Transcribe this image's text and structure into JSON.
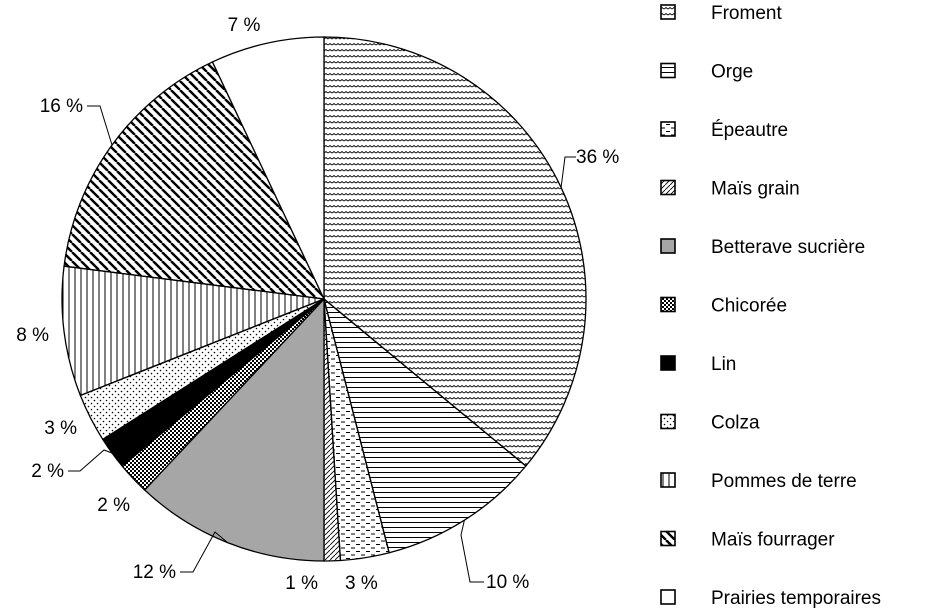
{
  "chart_data": {
    "type": "pie",
    "start_angle_deg": 0,
    "direction": "clockwise",
    "legend_position": "right",
    "slices": [
      {
        "name": "Froment",
        "value": 36,
        "label": "36 %",
        "pattern": "wave"
      },
      {
        "name": "Orge",
        "value": 10,
        "label": "10 %",
        "pattern": "hlines"
      },
      {
        "name": "Épeautre",
        "value": 3,
        "label": "3 %",
        "pattern": "dashes"
      },
      {
        "name": "Maïs grain",
        "value": 1,
        "label": "1 %",
        "pattern": "diag-fwd"
      },
      {
        "name": "Betterave sucrière",
        "value": 12,
        "label": "12 %",
        "pattern": "gray"
      },
      {
        "name": "Chicorée",
        "value": 2,
        "label": "2 %",
        "pattern": "checker"
      },
      {
        "name": "Lin",
        "value": 2,
        "label": "2 %",
        "pattern": "black"
      },
      {
        "name": "Colza",
        "value": 3,
        "label": "3 %",
        "pattern": "dots"
      },
      {
        "name": "Pommes de terre",
        "value": 8,
        "label": "8 %",
        "pattern": "vlines"
      },
      {
        "name": "Maïs fourrager",
        "value": 16,
        "label": "16 %",
        "pattern": "diag-back"
      },
      {
        "name": "Prairies temporaires",
        "value": 7,
        "label": "7 %",
        "pattern": "white"
      }
    ]
  }
}
